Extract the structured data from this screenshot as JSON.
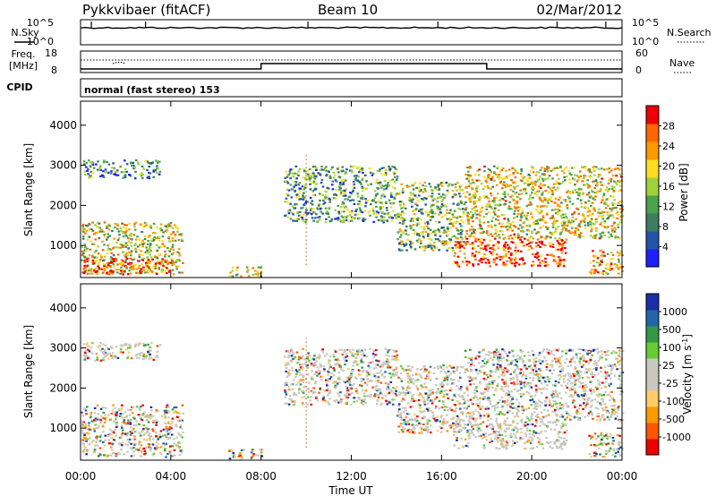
{
  "header": {
    "station": "Pykkvibaer (fitACF)",
    "beam": "Beam 10",
    "date": "02/Mar/2012"
  },
  "noise_panel": {
    "left_label": "N.Sky",
    "right_label": "N.Search",
    "left_ticks": [
      "10^5",
      "10^0"
    ],
    "right_ticks": [
      "10^5",
      "10^0"
    ]
  },
  "freq_panel": {
    "left_label_line1": "Freq.",
    "left_label_line2": "[MHz]",
    "right_label": "Nave",
    "left_ticks": [
      "18",
      "8"
    ],
    "right_ticks": [
      "60",
      "0"
    ]
  },
  "cpid": {
    "label": "CPID",
    "text": "normal (fast stereo) 153"
  },
  "x_axis": {
    "title": "Time UT",
    "ticks": [
      "00:00",
      "04:00",
      "08:00",
      "12:00",
      "16:00",
      "20:00",
      "00:00"
    ]
  },
  "colors": {
    "power_scale": [
      "#1e1eff",
      "#2255aa",
      "#3b7d5e",
      "#4aa24a",
      "#9fd23a",
      "#ffdd22",
      "#ff9900",
      "#ff6600",
      "#ee0000"
    ],
    "velocity_scale": [
      "#ee0000",
      "#ff5500",
      "#ff9900",
      "#ffcc66",
      "#c8c8c0",
      "#c8c8c0",
      "#66cc33",
      "#339944",
      "#2266aa",
      "#1a2ea8"
    ],
    "ground_scatter": "#c8c8c0"
  },
  "chart_data": [
    {
      "type": "heatmap",
      "name": "power",
      "ylabel": "Slant Range [km]",
      "yticks": [
        1000,
        2000,
        3000,
        4000
      ],
      "ylim": [
        200,
        4600
      ],
      "xlim_hours": [
        0,
        24
      ],
      "colorbar": {
        "label": "Power [dB]",
        "ticks": [
          4,
          8,
          12,
          16,
          20,
          24,
          28
        ],
        "range": [
          0,
          32
        ]
      },
      "scatter_regions": [
        {
          "t0": 0.0,
          "t1": 4.5,
          "r0": 300,
          "r1": 1600,
          "level": 0.55
        },
        {
          "t0": 0.1,
          "t1": 4.0,
          "r0": 300,
          "r1": 700,
          "level": 0.85
        },
        {
          "t0": 0.1,
          "t1": 3.5,
          "r0": 2700,
          "r1": 3150,
          "level": 0.3
        },
        {
          "t0": 6.5,
          "t1": 8.0,
          "r0": 250,
          "r1": 500,
          "level": 0.6
        },
        {
          "t0": 9.0,
          "t1": 14.0,
          "r0": 1600,
          "r1": 3000,
          "level": 0.35
        },
        {
          "t0": 14.0,
          "t1": 17.0,
          "r0": 900,
          "r1": 2600,
          "level": 0.45
        },
        {
          "t0": 16.5,
          "t1": 21.5,
          "r0": 500,
          "r1": 1200,
          "level": 0.9
        },
        {
          "t0": 17.0,
          "t1": 24.0,
          "r0": 1200,
          "r1": 3000,
          "level": 0.6
        },
        {
          "t0": 22.5,
          "t1": 24.0,
          "r0": 300,
          "r1": 900,
          "level": 0.7
        }
      ]
    },
    {
      "type": "heatmap",
      "name": "velocity",
      "ylabel": "Slant Range [km]",
      "yticks": [
        1000,
        2000,
        3000,
        4000
      ],
      "ylim": [
        200,
        4600
      ],
      "xlim_hours": [
        0,
        24
      ],
      "colorbar": {
        "label": "Velocity [m s",
        "label_sup": "-1",
        "label_end": "]",
        "ticks": [
          "-1000",
          "-500",
          "-100",
          "-25",
          "25",
          "100",
          "500",
          "1000"
        ]
      },
      "scatter_regions": [
        {
          "t0": 0.0,
          "t1": 4.5,
          "r0": 300,
          "r1": 1600,
          "level": 0.3
        },
        {
          "t0": 0.1,
          "t1": 3.5,
          "r0": 2700,
          "r1": 3150,
          "level": 0.5
        },
        {
          "t0": 6.5,
          "t1": 8.0,
          "r0": 250,
          "r1": 500,
          "level": 0.35
        },
        {
          "t0": 9.0,
          "t1": 14.0,
          "r0": 1600,
          "r1": 3000,
          "level": 0.5
        },
        {
          "t0": 14.0,
          "t1": 17.0,
          "r0": 900,
          "r1": 2600,
          "level": 0.5
        },
        {
          "t0": 16.5,
          "t1": 21.5,
          "r0": 500,
          "r1": 1200,
          "level": 0.72
        },
        {
          "t0": 17.0,
          "t1": 24.0,
          "r0": 1200,
          "r1": 3000,
          "level": 0.5
        },
        {
          "t0": 22.5,
          "t1": 24.0,
          "r0": 300,
          "r1": 900,
          "level": 0.3
        }
      ]
    }
  ]
}
